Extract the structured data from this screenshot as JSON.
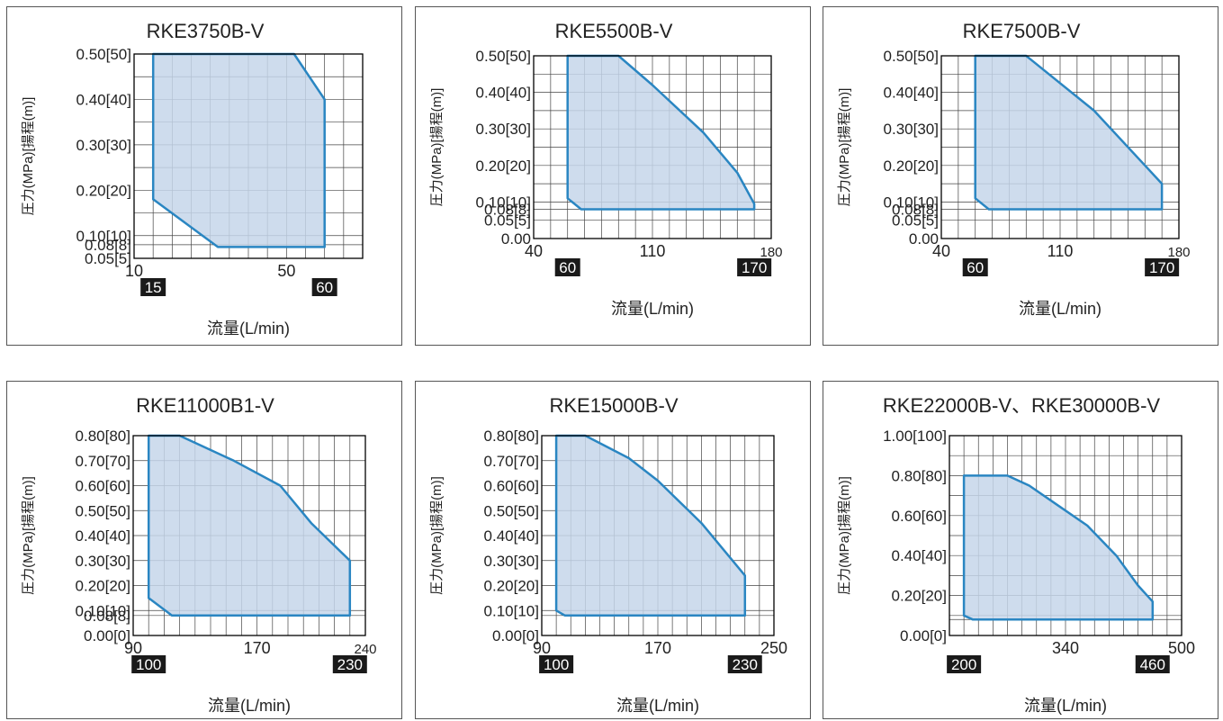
{
  "theme": {
    "fill": "#c6d6ea",
    "stroke": "#2a86c2",
    "grid": "#444444",
    "marker_bg": "#1a1a1a",
    "marker_fg": "#ffffff"
  },
  "chart_data": [
    {
      "type": "area",
      "title": "RKE3750B-V",
      "xlabel": "流量(L/min)",
      "ylabel": "圧力(MPa)[揚程(m)]",
      "xlim": [
        10,
        70
      ],
      "ylim": [
        0.05,
        0.5
      ],
      "xgrid": [
        10,
        15,
        20,
        25,
        30,
        35,
        40,
        45,
        50,
        55,
        60,
        65,
        70
      ],
      "ygrid": [
        0.05,
        0.08,
        0.1,
        0.15,
        0.2,
        0.25,
        0.3,
        0.35,
        0.4,
        0.45,
        0.5
      ],
      "xticks": [
        {
          "v": 10,
          "t": "10"
        },
        {
          "v": 50,
          "t": "50"
        }
      ],
      "xmarkers": [
        {
          "v": 15,
          "t": "15"
        },
        {
          "v": 60,
          "t": "60"
        }
      ],
      "yticks": [
        {
          "v": 0.5,
          "t": "0.50[50]"
        },
        {
          "v": 0.4,
          "t": "0.40[40]"
        },
        {
          "v": 0.3,
          "t": "0.30[30]"
        },
        {
          "v": 0.2,
          "t": "0.20[20]"
        },
        {
          "v": 0.1,
          "t": "0.10[10]"
        },
        {
          "v": 0.08,
          "t": "0.08[8]"
        },
        {
          "v": 0.05,
          "t": "0.05[5]"
        }
      ],
      "series": [
        {
          "values": [
            [
              15,
              0.5
            ],
            [
              52,
              0.5
            ],
            [
              60,
              0.4
            ],
            [
              60,
              0.075
            ],
            [
              32,
              0.075
            ],
            [
              15,
              0.18
            ]
          ]
        }
      ]
    },
    {
      "type": "area",
      "title": "RKE5500B-V",
      "xlabel": "流量(L/min)",
      "ylabel": "圧力(MPa)[揚程(m)]",
      "xlim": [
        40,
        180
      ],
      "ylim": [
        0,
        0.5
      ],
      "xgrid": [
        40,
        50,
        60,
        70,
        80,
        90,
        100,
        110,
        120,
        130,
        140,
        150,
        160,
        170,
        180
      ],
      "ygrid": [
        0,
        0.05,
        0.08,
        0.1,
        0.15,
        0.2,
        0.25,
        0.3,
        0.35,
        0.4,
        0.45,
        0.5
      ],
      "xticks": [
        {
          "v": 40,
          "t": "40"
        },
        {
          "v": 110,
          "t": "110"
        },
        {
          "v": 180,
          "t": "180",
          "small": true
        }
      ],
      "xmarkers": [
        {
          "v": 60,
          "t": "60"
        },
        {
          "v": 170,
          "t": "170"
        }
      ],
      "yticks": [
        {
          "v": 0.5,
          "t": "0.50[50]"
        },
        {
          "v": 0.4,
          "t": "0.40[40]"
        },
        {
          "v": 0.3,
          "t": "0.30[30]"
        },
        {
          "v": 0.2,
          "t": "0.20[20]"
        },
        {
          "v": 0.1,
          "t": "0.10[10]"
        },
        {
          "v": 0.08,
          "t": "0.08[8]"
        },
        {
          "v": 0.05,
          "t": "0.05[5]"
        },
        {
          "v": 0,
          "t": "0.00"
        }
      ],
      "series": [
        {
          "values": [
            [
              60,
              0.5
            ],
            [
              90,
              0.5
            ],
            [
              110,
              0.42
            ],
            [
              140,
              0.29
            ],
            [
              160,
              0.18
            ],
            [
              170,
              0.095
            ],
            [
              170,
              0.08
            ],
            [
              68,
              0.08
            ],
            [
              60,
              0.11
            ]
          ]
        }
      ]
    },
    {
      "type": "area",
      "title": "RKE7500B-V",
      "xlabel": "流量(L/min)",
      "ylabel": "圧力(MPa)[揚程(m)]",
      "xlim": [
        40,
        180
      ],
      "ylim": [
        0,
        0.5
      ],
      "xgrid": [
        40,
        50,
        60,
        70,
        80,
        90,
        100,
        110,
        120,
        130,
        140,
        150,
        160,
        170,
        180
      ],
      "ygrid": [
        0,
        0.05,
        0.08,
        0.1,
        0.15,
        0.2,
        0.25,
        0.3,
        0.35,
        0.4,
        0.45,
        0.5
      ],
      "xticks": [
        {
          "v": 40,
          "t": "40"
        },
        {
          "v": 110,
          "t": "110"
        },
        {
          "v": 180,
          "t": "180",
          "small": true
        }
      ],
      "xmarkers": [
        {
          "v": 60,
          "t": "60"
        },
        {
          "v": 170,
          "t": "170"
        }
      ],
      "yticks": [
        {
          "v": 0.5,
          "t": "0.50[50]"
        },
        {
          "v": 0.4,
          "t": "0.40[40]"
        },
        {
          "v": 0.3,
          "t": "0.30[30]"
        },
        {
          "v": 0.2,
          "t": "0.20[20]"
        },
        {
          "v": 0.1,
          "t": "0.10[10]"
        },
        {
          "v": 0.08,
          "t": "0.08[8]"
        },
        {
          "v": 0.05,
          "t": "0.05[5]"
        },
        {
          "v": 0,
          "t": "0.00"
        }
      ],
      "series": [
        {
          "values": [
            [
              60,
              0.5
            ],
            [
              90,
              0.5
            ],
            [
              130,
              0.35
            ],
            [
              160,
              0.2
            ],
            [
              170,
              0.15
            ],
            [
              170,
              0.08
            ],
            [
              68,
              0.08
            ],
            [
              60,
              0.11
            ]
          ]
        }
      ]
    },
    {
      "type": "area",
      "title": "RKE11000B1-V",
      "xlabel": "流量(L/min)",
      "ylabel": "圧力(MPa)[揚程(m)]",
      "xlim": [
        90,
        240
      ],
      "ylim": [
        0,
        0.8
      ],
      "xgrid": [
        90,
        100,
        110,
        120,
        130,
        140,
        150,
        160,
        170,
        180,
        190,
        200,
        210,
        220,
        230,
        240
      ],
      "ygrid": [
        0,
        0.08,
        0.1,
        0.2,
        0.3,
        0.4,
        0.5,
        0.6,
        0.7,
        0.8
      ],
      "xticks": [
        {
          "v": 90,
          "t": "90"
        },
        {
          "v": 170,
          "t": "170"
        },
        {
          "v": 240,
          "t": "240",
          "small": true
        }
      ],
      "xmarkers": [
        {
          "v": 100,
          "t": "100"
        },
        {
          "v": 230,
          "t": "230"
        }
      ],
      "yticks": [
        {
          "v": 0.8,
          "t": "0.80[80]"
        },
        {
          "v": 0.7,
          "t": "0.70[70]"
        },
        {
          "v": 0.6,
          "t": "0.60[60]"
        },
        {
          "v": 0.5,
          "t": "0.50[50]"
        },
        {
          "v": 0.4,
          "t": "0.40[40]"
        },
        {
          "v": 0.3,
          "t": "0.30[30]"
        },
        {
          "v": 0.2,
          "t": "0.20[20]"
        },
        {
          "v": 0.1,
          "t": "0.10[10]"
        },
        {
          "v": 0.08,
          "t": "0.08[8]"
        },
        {
          "v": 0,
          "t": "0.00[0]"
        }
      ],
      "series": [
        {
          "values": [
            [
              100,
              0.8
            ],
            [
              120,
              0.8
            ],
            [
              155,
              0.7
            ],
            [
              185,
              0.6
            ],
            [
              205,
              0.45
            ],
            [
              230,
              0.3
            ],
            [
              230,
              0.08
            ],
            [
              115,
              0.08
            ],
            [
              100,
              0.15
            ]
          ]
        }
      ]
    },
    {
      "type": "area",
      "title": "RKE15000B-V",
      "xlabel": "流量(L/min)",
      "ylabel": "圧力(MPa)[揚程(m)]",
      "xlim": [
        90,
        250
      ],
      "ylim": [
        0,
        0.8
      ],
      "xgrid": [
        90,
        100,
        110,
        120,
        130,
        140,
        150,
        160,
        170,
        180,
        190,
        200,
        210,
        220,
        230,
        240,
        250
      ],
      "ygrid": [
        0,
        0.08,
        0.1,
        0.2,
        0.3,
        0.4,
        0.5,
        0.6,
        0.7,
        0.8
      ],
      "xticks": [
        {
          "v": 90,
          "t": "90"
        },
        {
          "v": 170,
          "t": "170"
        },
        {
          "v": 250,
          "t": "250"
        }
      ],
      "xmarkers": [
        {
          "v": 100,
          "t": "100"
        },
        {
          "v": 230,
          "t": "230"
        }
      ],
      "yticks": [
        {
          "v": 0.8,
          "t": "0.80[80]"
        },
        {
          "v": 0.7,
          "t": "0.70[70]"
        },
        {
          "v": 0.6,
          "t": "0.60[60]"
        },
        {
          "v": 0.5,
          "t": "0.50[50]"
        },
        {
          "v": 0.4,
          "t": "0.40[40]"
        },
        {
          "v": 0.3,
          "t": "0.30[30]"
        },
        {
          "v": 0.2,
          "t": "0.20[20]"
        },
        {
          "v": 0.1,
          "t": "0.10[10]"
        },
        {
          "v": 0,
          "t": "0.00[0]"
        }
      ],
      "series": [
        {
          "values": [
            [
              100,
              0.8
            ],
            [
              120,
              0.8
            ],
            [
              150,
              0.71
            ],
            [
              170,
              0.62
            ],
            [
              200,
              0.45
            ],
            [
              230,
              0.24
            ],
            [
              230,
              0.08
            ],
            [
              106,
              0.08
            ],
            [
              100,
              0.1
            ]
          ]
        }
      ]
    },
    {
      "type": "area",
      "title": "RKE22000B-V、RKE30000B-V",
      "xlabel": "流量(L/min)",
      "ylabel": "圧力(MPa)[揚程(m)]",
      "xlim": [
        180,
        500
      ],
      "ylim": [
        0,
        1.0
      ],
      "xgrid": [
        180,
        200,
        220,
        240,
        260,
        280,
        300,
        320,
        340,
        360,
        380,
        400,
        420,
        440,
        460,
        480,
        500
      ],
      "ygrid": [
        0,
        0.08,
        0.1,
        0.2,
        0.3,
        0.4,
        0.5,
        0.6,
        0.7,
        0.8,
        0.9,
        1.0
      ],
      "xticks": [
        {
          "v": 340,
          "t": "340"
        },
        {
          "v": 500,
          "t": "500"
        }
      ],
      "xmarkers": [
        {
          "v": 200,
          "t": "200"
        },
        {
          "v": 460,
          "t": "460"
        }
      ],
      "yticks": [
        {
          "v": 1.0,
          "t": "1.00[100]"
        },
        {
          "v": 0.8,
          "t": "0.80[80]"
        },
        {
          "v": 0.6,
          "t": "0.60[60]"
        },
        {
          "v": 0.4,
          "t": "0.40[40]"
        },
        {
          "v": 0.2,
          "t": "0.20[20]"
        },
        {
          "v": 0,
          "t": "0.00[0]"
        }
      ],
      "series": [
        {
          "values": [
            [
              200,
              0.8
            ],
            [
              260,
              0.8
            ],
            [
              290,
              0.75
            ],
            [
              330,
              0.65
            ],
            [
              370,
              0.55
            ],
            [
              410,
              0.4
            ],
            [
              440,
              0.25
            ],
            [
              460,
              0.17
            ],
            [
              460,
              0.08
            ],
            [
              212,
              0.08
            ],
            [
              200,
              0.1
            ]
          ]
        }
      ]
    }
  ]
}
